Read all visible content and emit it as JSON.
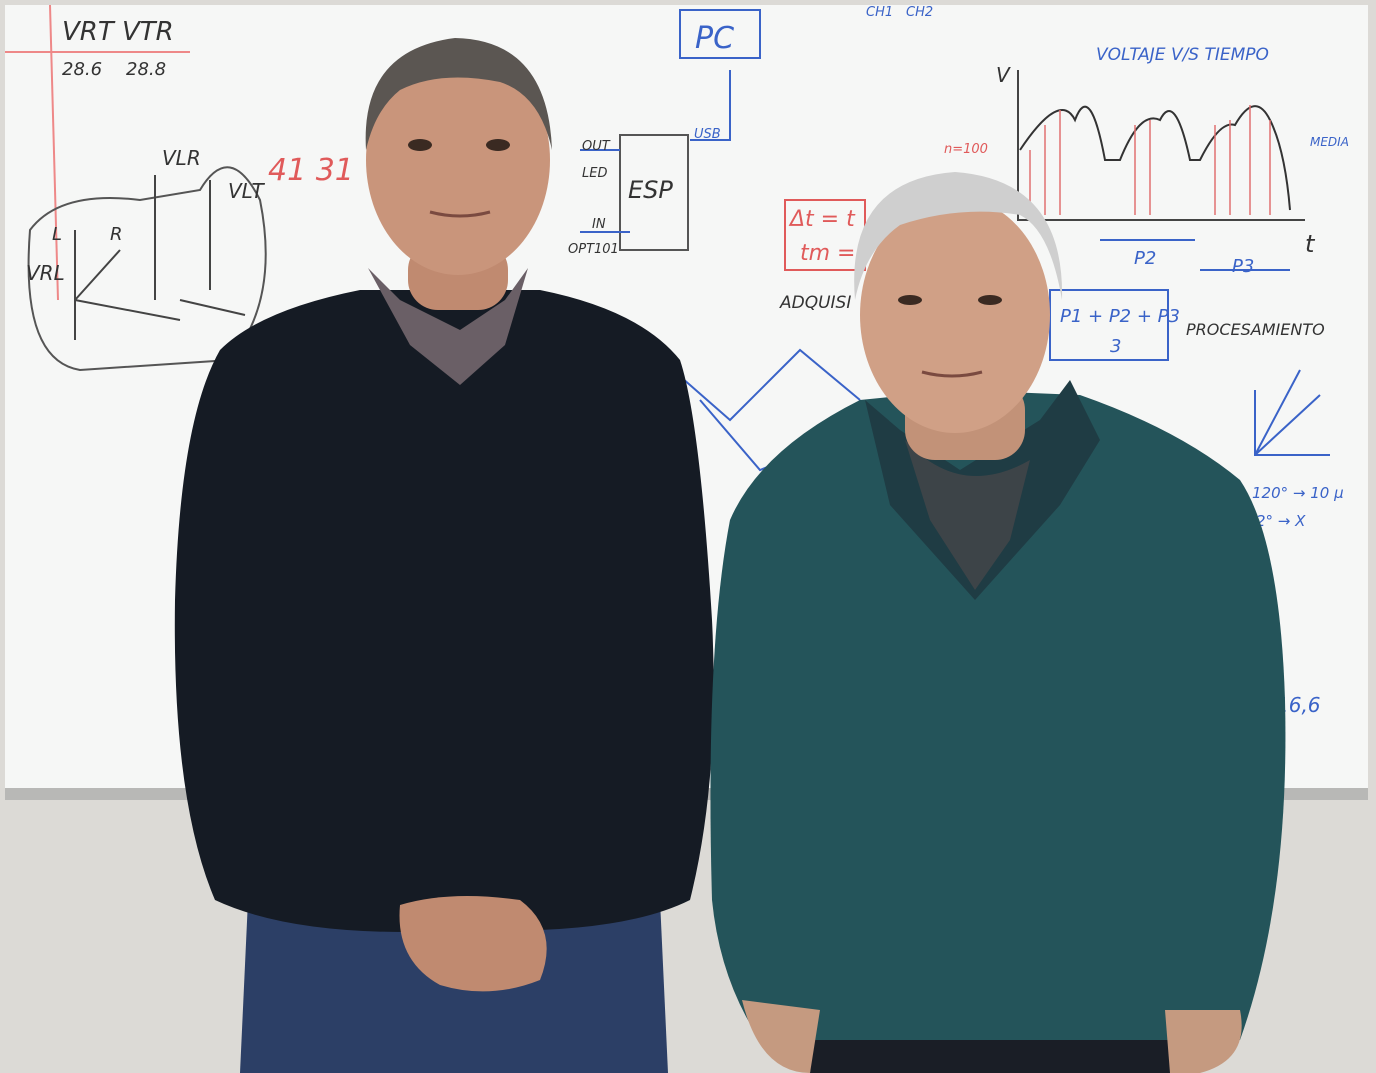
{
  "whiteboard": {
    "texts": [
      "VRT",
      "VTR",
      "28.6",
      "28.8",
      "VLR",
      "VLT",
      "VRL",
      "L",
      "R",
      "41 31",
      "PC",
      "CH1",
      "CH2",
      "OUT",
      "LED",
      "ESP",
      "IN",
      "OPT101",
      "USB",
      "n=100",
      "VOLTAJE V/S TIEMPO",
      "V",
      "MEDIA",
      "t",
      "P2",
      "P3",
      "Δt = t",
      "tm =",
      "ADQUISI",
      "P1 + P2 + P3",
      "3",
      "PROCESAMIENTO",
      "120° → 10 μ",
      "2° → X",
      "16,6"
    ]
  }
}
